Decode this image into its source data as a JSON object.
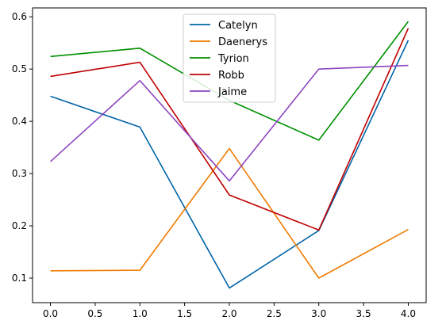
{
  "chart_data": {
    "type": "line",
    "title": "",
    "xlabel": "",
    "ylabel": "",
    "xlim": [
      -0.2,
      4.2
    ],
    "ylim": [
      0.053,
      0.617
    ],
    "xticks": [
      0.0,
      0.5,
      1.0,
      1.5,
      2.0,
      2.5,
      3.0,
      3.5,
      4.0
    ],
    "xtick_labels": [
      "0.0",
      "0.5",
      "1.0",
      "1.5",
      "2.0",
      "2.5",
      "3.0",
      "3.5",
      "4.0"
    ],
    "yticks": [
      0.1,
      0.2,
      0.3,
      0.4,
      0.5,
      0.6
    ],
    "ytick_labels": [
      "0.1",
      "0.2",
      "0.3",
      "0.4",
      "0.5",
      "0.6"
    ],
    "grid": false,
    "legend_position": "top-center",
    "x": [
      0,
      1,
      2,
      3,
      4
    ],
    "series": [
      {
        "name": "Catelyn",
        "color": "#0064a8",
        "values": [
          0.448,
          0.389,
          0.081,
          0.191,
          0.555
        ]
      },
      {
        "name": "Daenerys",
        "color": "#f07a00",
        "values": [
          0.114,
          0.115,
          0.348,
          0.1,
          0.193
        ]
      },
      {
        "name": "Tyrion",
        "color": "#009000",
        "values": [
          0.524,
          0.54,
          0.44,
          0.364,
          0.591
        ]
      },
      {
        "name": "Robb",
        "color": "#c00000",
        "values": [
          0.486,
          0.513,
          0.259,
          0.192,
          0.578
        ]
      },
      {
        "name": "Jaime",
        "color": "#8c45c0",
        "values": [
          0.323,
          0.478,
          0.286,
          0.5,
          0.507
        ]
      }
    ]
  }
}
